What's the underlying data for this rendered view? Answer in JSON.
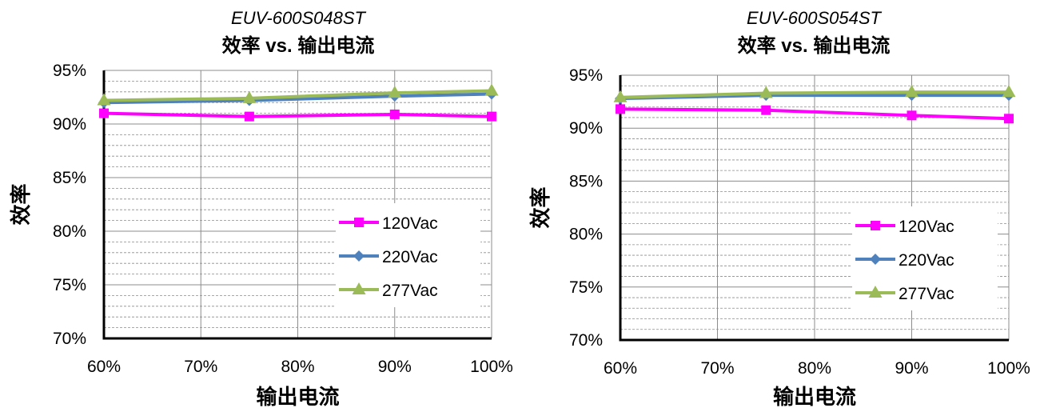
{
  "chart_data": [
    {
      "type": "line",
      "model": "EUV-600S048ST",
      "title": "效率 vs. 输出电流",
      "xlabel": "输出电流",
      "ylabel": "效率",
      "x": [
        60,
        75,
        90,
        100
      ],
      "x_ticks": [
        "60%",
        "70%",
        "80%",
        "90%",
        "100%"
      ],
      "xlim": [
        60,
        100
      ],
      "y_ticks": [
        "70%",
        "75%",
        "80%",
        "85%",
        "90%",
        "95%"
      ],
      "ylim": [
        70,
        95
      ],
      "grid": true,
      "legend_position": "center-right",
      "series": [
        {
          "name": "120Vac",
          "values": [
            91.0,
            90.7,
            90.9,
            90.7
          ],
          "color": "#FF00FF",
          "marker": "square"
        },
        {
          "name": "220Vac",
          "values": [
            92.0,
            92.2,
            92.6,
            92.8
          ],
          "color": "#4F81BD",
          "marker": "diamond"
        },
        {
          "name": "277Vac",
          "values": [
            92.2,
            92.4,
            92.9,
            93.1
          ],
          "color": "#9BBB59",
          "marker": "triangle"
        }
      ]
    },
    {
      "type": "line",
      "model": "EUV-600S054ST",
      "title": "效率 vs. 输出电流",
      "xlabel": "输出电流",
      "ylabel": "效率",
      "x": [
        60,
        75,
        90,
        100
      ],
      "x_ticks": [
        "60%",
        "70%",
        "80%",
        "90%",
        "100%"
      ],
      "xlim": [
        60,
        100
      ],
      "y_ticks": [
        "70%",
        "75%",
        "80%",
        "85%",
        "90%",
        "95%"
      ],
      "ylim": [
        70,
        95
      ],
      "grid": true,
      "legend_position": "center-right",
      "series": [
        {
          "name": "120Vac",
          "values": [
            91.8,
            91.7,
            91.2,
            90.9
          ],
          "color": "#FF00FF",
          "marker": "square"
        },
        {
          "name": "220Vac",
          "values": [
            92.8,
            93.1,
            93.1,
            93.1
          ],
          "color": "#4F81BD",
          "marker": "diamond"
        },
        {
          "name": "277Vac",
          "values": [
            92.9,
            93.3,
            93.4,
            93.4
          ],
          "color": "#9BBB59",
          "marker": "triangle"
        }
      ]
    }
  ]
}
